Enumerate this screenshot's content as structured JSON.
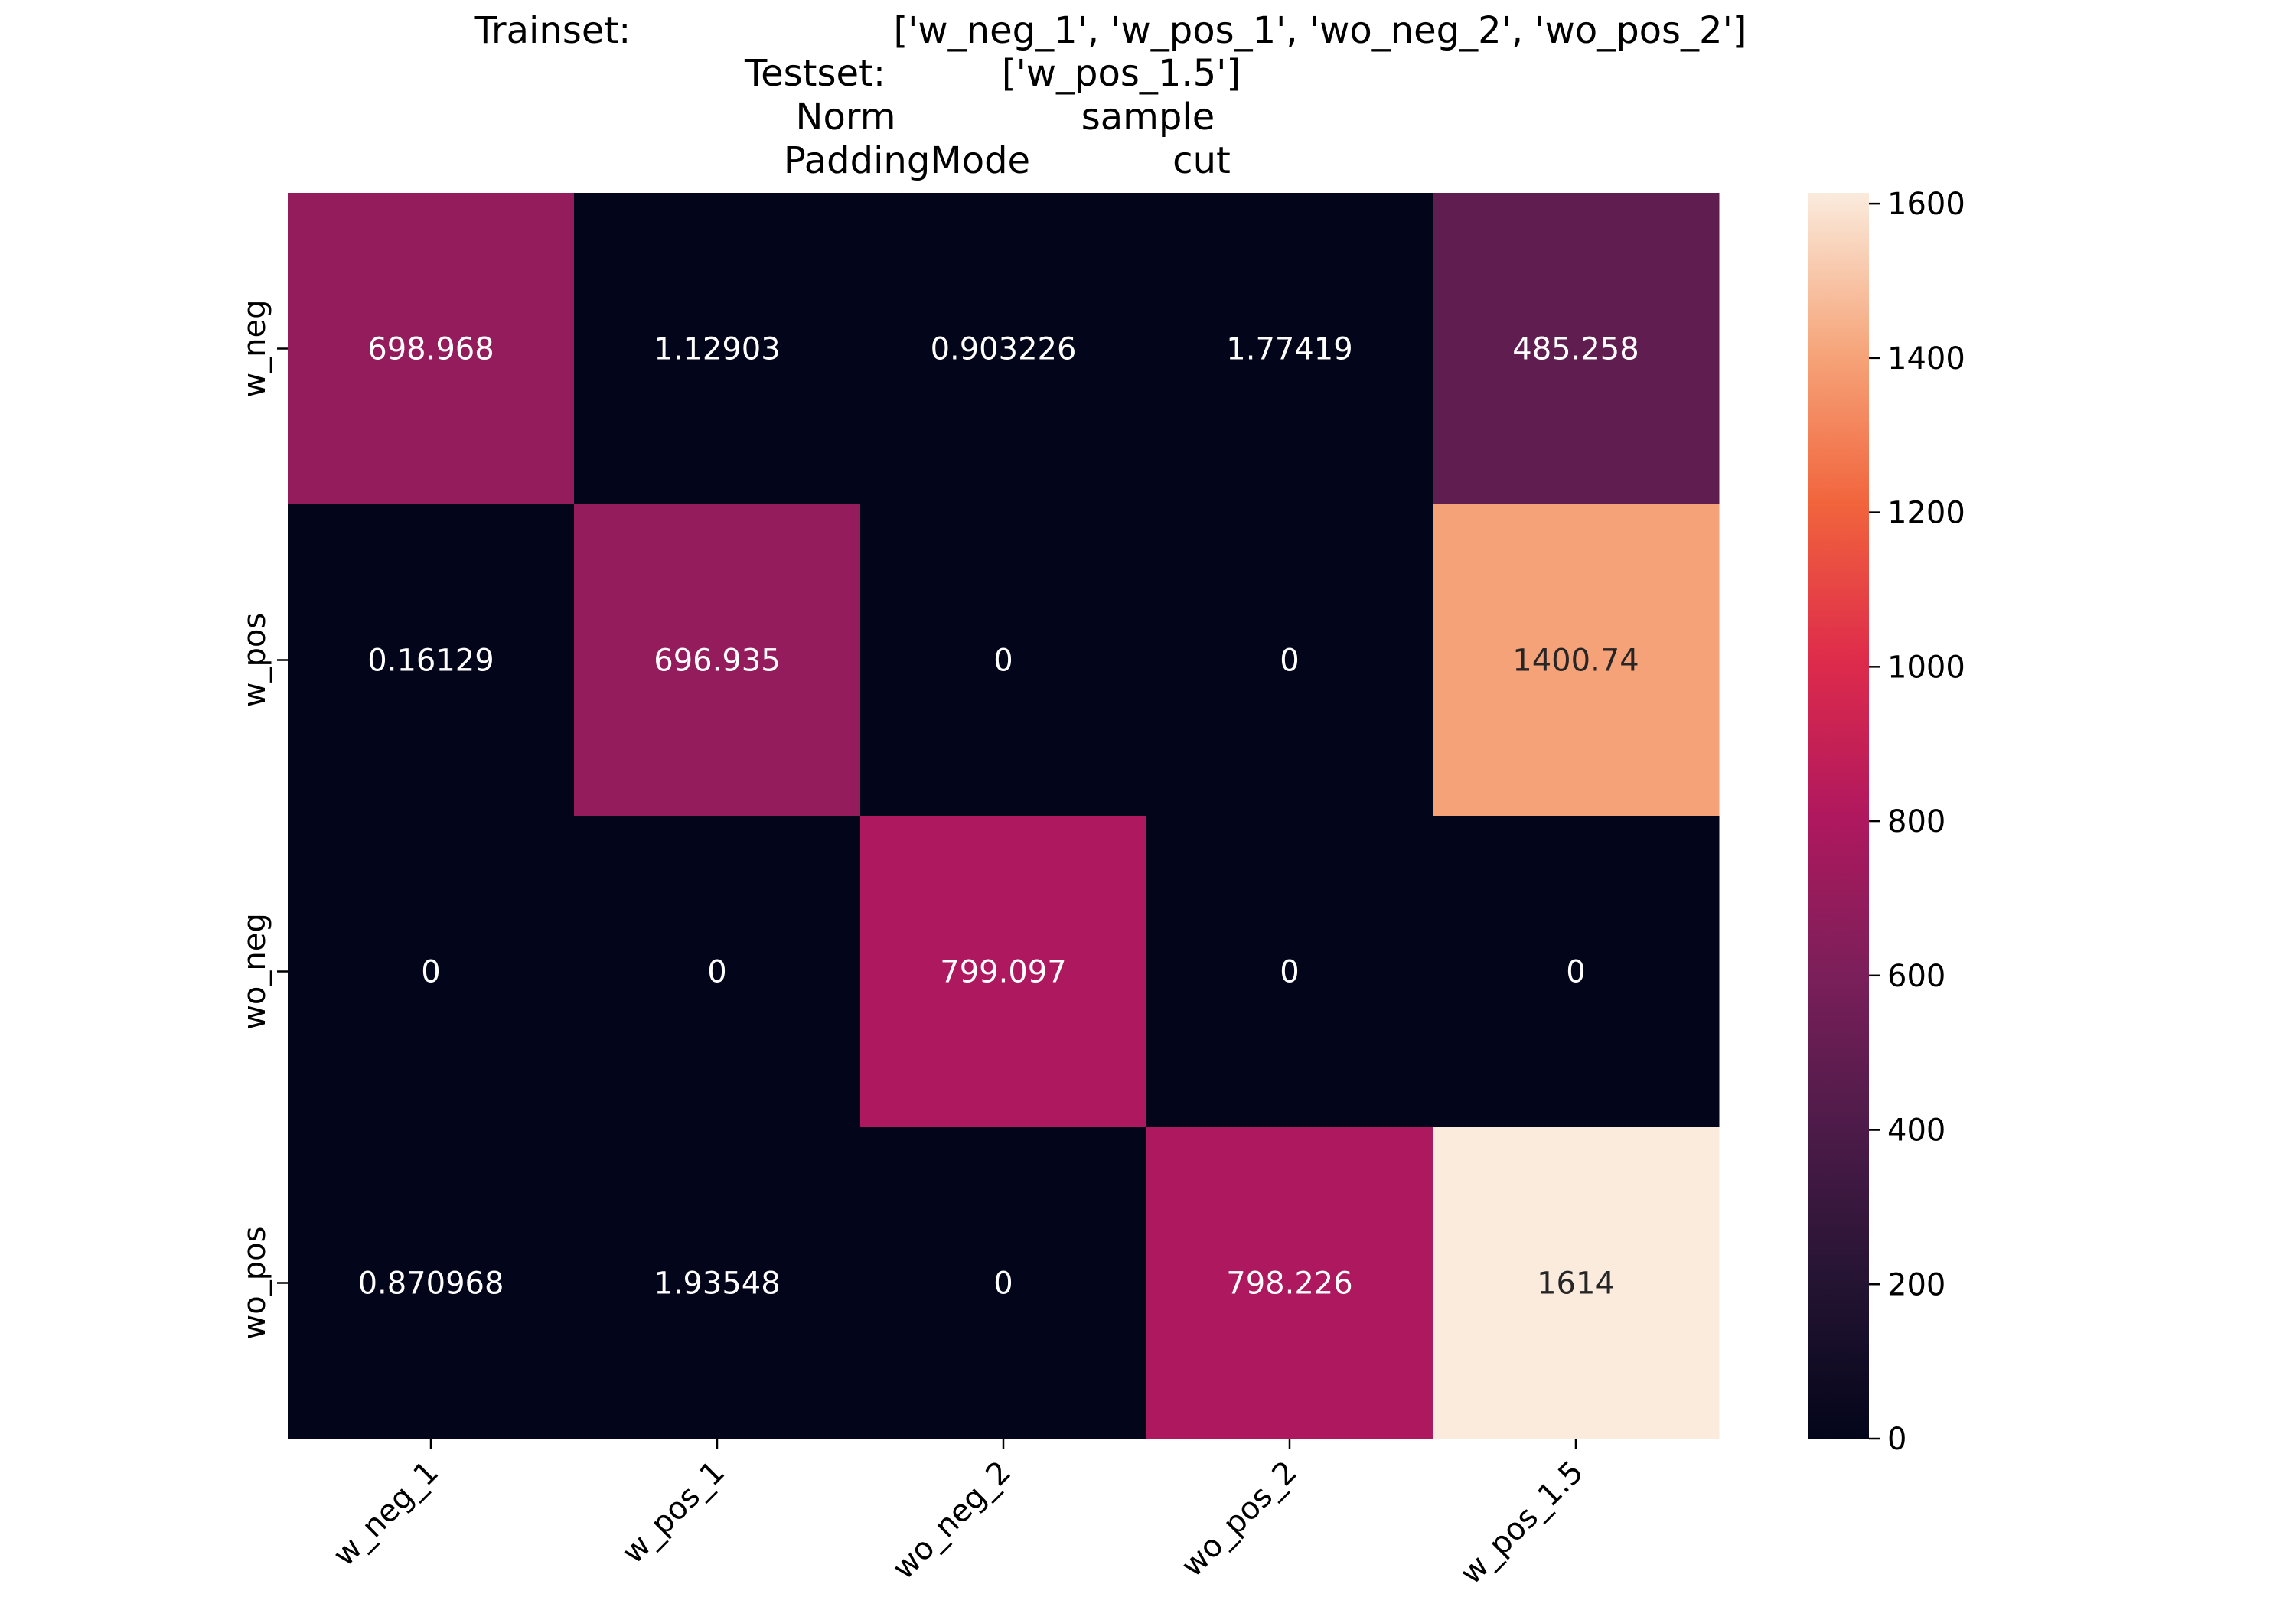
{
  "title": {
    "lines": [
      [
        "Trainset:",
        "['w_neg_1', 'w_pos_1', 'wo_neg_2', 'wo_pos_2']"
      ],
      [
        "Testset:",
        "['w_pos_1.5']"
      ],
      [
        "Norm",
        "sample"
      ],
      [
        "PaddingMode",
        "cut"
      ]
    ]
  },
  "chart_data": {
    "type": "heatmap",
    "rows": [
      "w_neg",
      "w_pos",
      "wo_neg",
      "wo_pos"
    ],
    "columns": [
      "w_neg_1",
      "w_pos_1",
      "wo_neg_2",
      "wo_pos_2",
      "w_pos_1.5"
    ],
    "values": [
      [
        698.968,
        1.12903,
        0.903226,
        1.77419,
        485.258
      ],
      [
        0.16129,
        696.935,
        0,
        0,
        1400.74
      ],
      [
        0,
        0,
        799.097,
        0,
        0
      ],
      [
        0.870968,
        1.93548,
        0,
        798.226,
        1614
      ]
    ],
    "labels": [
      [
        "698.968",
        "1.12903",
        "0.903226",
        "1.77419",
        "485.258"
      ],
      [
        "0.16129",
        "696.935",
        "0",
        "0",
        "1400.74"
      ],
      [
        "0",
        "0",
        "799.097",
        "0",
        "0"
      ],
      [
        "0.870968",
        "1.93548",
        "0",
        "798.226",
        "1614"
      ]
    ],
    "colorbar": {
      "min": 0,
      "max": 1614,
      "ticks": [
        0,
        200,
        400,
        600,
        800,
        1000,
        1200,
        1400,
        1600
      ],
      "colormap": "rocket"
    },
    "xlabel": "",
    "ylabel": ""
  }
}
